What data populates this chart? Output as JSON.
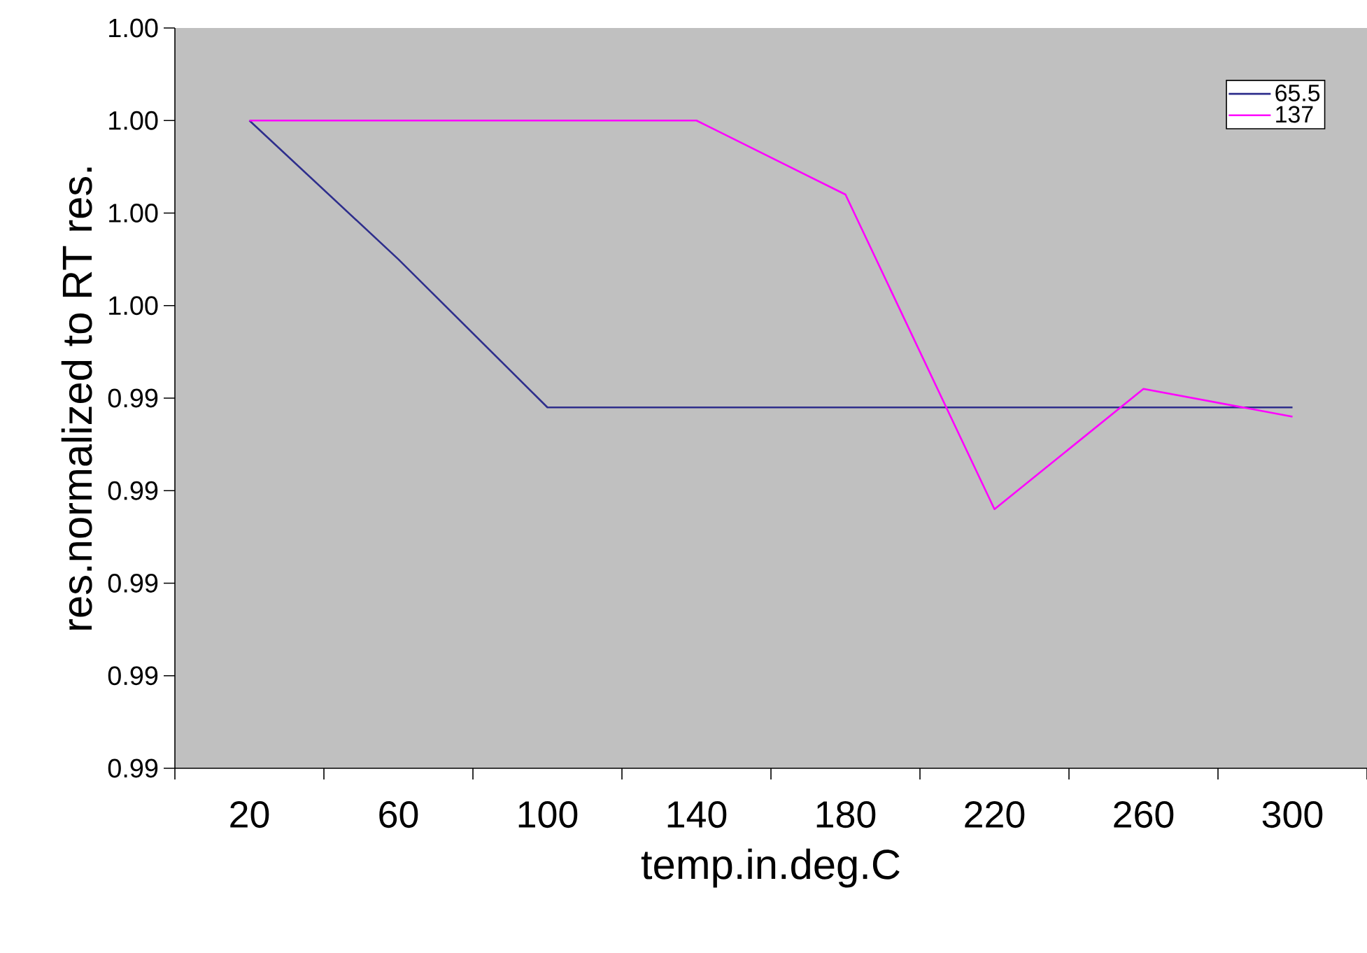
{
  "chart_data": {
    "type": "line",
    "xlabel": "temp.in.deg.C",
    "ylabel": "res.normalized to RT res.",
    "categories": [
      "20",
      "60",
      "100",
      "140",
      "180",
      "220",
      "260",
      "300"
    ],
    "series": [
      {
        "name": "65.5",
        "color": "#2e2e8c",
        "values": [
          0.998,
          0.9965,
          0.9949,
          0.9949,
          0.9949,
          0.9949,
          0.9949,
          0.9949
        ]
      },
      {
        "name": "137",
        "color": "#ff00ff",
        "values": [
          0.998,
          0.998,
          0.998,
          0.998,
          0.9972,
          0.9938,
          0.9951,
          0.9948
        ]
      }
    ],
    "ylim": [
      0.991,
      0.999
    ],
    "yticks": [
      {
        "value": 0.991,
        "label": "0.99"
      },
      {
        "value": 0.992,
        "label": "0.99"
      },
      {
        "value": 0.993,
        "label": "0.99"
      },
      {
        "value": 0.994,
        "label": "0.99"
      },
      {
        "value": 0.995,
        "label": "0.99"
      },
      {
        "value": 0.996,
        "label": "1.00"
      },
      {
        "value": 0.997,
        "label": "1.00"
      },
      {
        "value": 0.998,
        "label": "1.00"
      },
      {
        "value": 0.999,
        "label": "1.00"
      }
    ],
    "grid": false,
    "legend": "top right",
    "marker": "none",
    "line_style": "solid"
  }
}
